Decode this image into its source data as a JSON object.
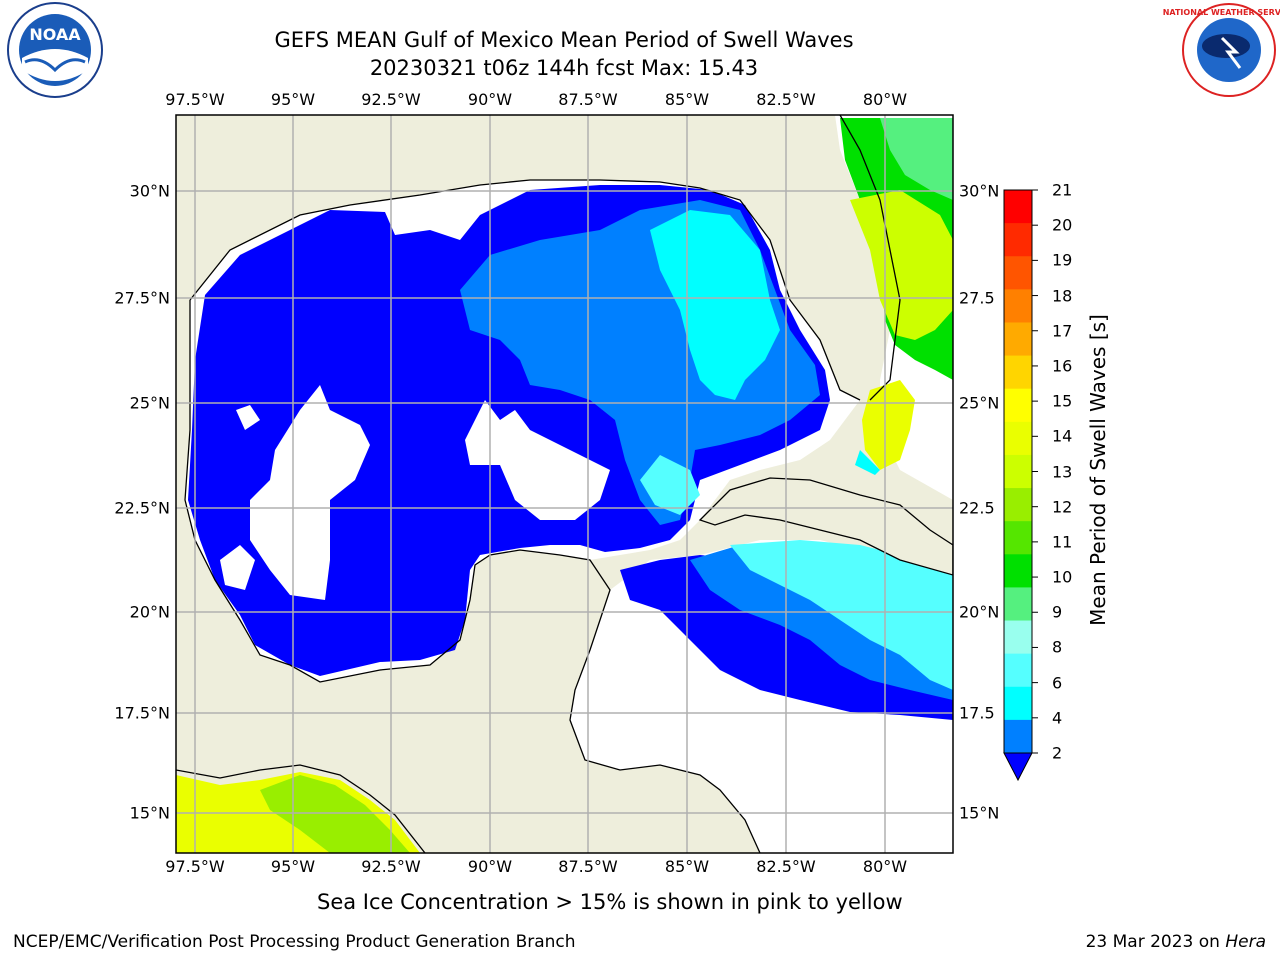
{
  "title_line1": "GEFS MEAN Gulf of Mexico Mean Period of Swell Waves",
  "title_line2": "20230321 t06z 144h fcst   Max: 15.43",
  "lon_ticks": [
    "97.5°W",
    "95°W",
    "92.5°W",
    "90°W",
    "87.5°W",
    "85°W",
    "82.5°W",
    "80°W"
  ],
  "lat_ticks_left": [
    "30°N",
    "27.5°N",
    "25°N",
    "22.5°N",
    "20°N",
    "17.5°N",
    "15°N"
  ],
  "lat_ticks_right": [
    "30°N",
    "27.5",
    "25°N",
    "22.5",
    "20°N",
    "17.5",
    "15°N"
  ],
  "colorbar": {
    "title": "Mean Period of Swell Waves [s]",
    "labels": [
      "21",
      "20",
      "19",
      "18",
      "17",
      "16",
      "15",
      "14",
      "13",
      "12",
      "11",
      "10",
      "9",
      "8",
      "6",
      "4",
      "2"
    ],
    "colors": [
      "#ff0000",
      "#ff2a00",
      "#ff5500",
      "#ff8000",
      "#ffaa00",
      "#ffd500",
      "#ffff00",
      "#eaff00",
      "#ccff00",
      "#99ee00",
      "#55e600",
      "#00e000",
      "#55f07f",
      "#99ffee",
      "#55ffff",
      "#00ffff",
      "#0080ff",
      "#0000ff"
    ]
  },
  "land_color": "#eeeedc",
  "note": "Sea Ice Concentration > 15% is shown in pink to yellow",
  "footer_left": "NCEP/EMC/Verification Post Processing Product Generation Branch",
  "footer_right_date": "23 Mar 2023 on",
  "footer_right_machine": "Hera",
  "logos": {
    "noaa_text": "NOAA",
    "nws_text": "NATIONAL WEATHER SERVICE"
  }
}
